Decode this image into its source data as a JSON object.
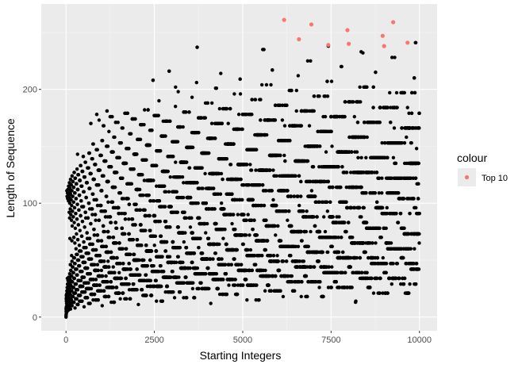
{
  "colors": {
    "panel_background": "#ebebeb",
    "grid_major": "#ffffff",
    "points": "#000000",
    "highlight": "#f8766d",
    "tick_text": "#4d4d4d"
  },
  "chart_data": {
    "type": "scatter",
    "xlabel": "Starting Integers",
    "ylabel": "Length of Sequence",
    "xlim": [
      -700,
      10500
    ],
    "ylim": [
      -12,
      275
    ],
    "x_ticks": [
      0,
      2500,
      5000,
      7500,
      10000
    ],
    "y_ticks": [
      0,
      100,
      200
    ],
    "grid": true,
    "legend": {
      "title": "colour",
      "placement": "right",
      "entries": [
        {
          "label": "Top 10",
          "color": "#f8766d"
        }
      ]
    },
    "series": [
      {
        "name": "Top 10",
        "points": [
          [
            6171,
            261
          ],
          [
            6943,
            257
          ],
          [
            7963,
            252
          ],
          [
            9257,
            259
          ],
          [
            9663,
            241
          ],
          [
            8959,
            247
          ],
          [
            6591,
            244
          ],
          [
            7422,
            239
          ],
          [
            8000,
            240
          ],
          [
            9000,
            238
          ]
        ]
      }
    ],
    "notable_points": [
      [
        3711,
        237
      ],
      [
        2919,
        216
      ],
      [
        2463,
        208
      ],
      [
        5600,
        235
      ],
      [
        6839,
        225
      ],
      [
        8400,
        232
      ],
      [
        9300,
        228
      ],
      [
        7800,
        220
      ],
      [
        8200,
        14
      ],
      [
        3100,
        202
      ],
      [
        4255,
        201
      ],
      [
        1161,
        181
      ],
      [
        871,
        178
      ],
      [
        703,
        170
      ],
      [
        27,
        111
      ]
    ]
  }
}
